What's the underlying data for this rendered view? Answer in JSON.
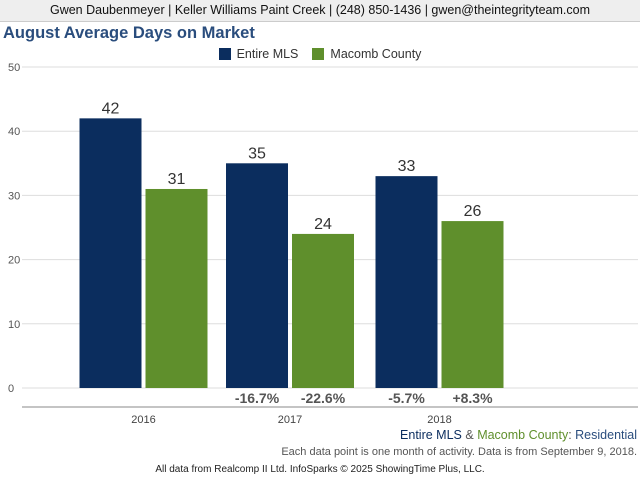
{
  "header": {
    "agent_line": "Gwen Daubenmeyer | Keller Williams Paint Creek | (248) 850-1436 | gwen@theintegrityteam.com"
  },
  "chart_data": {
    "type": "bar",
    "title": "August Average Days on Market",
    "categories": [
      "2016",
      "2017",
      "2018"
    ],
    "series": [
      {
        "name": "Entire MLS",
        "color": "#0b2d5e",
        "values": [
          42,
          35,
          33
        ]
      },
      {
        "name": "Macomb County",
        "color": "#5f8f2c",
        "values": [
          31,
          24,
          26
        ]
      }
    ],
    "change_labels": [
      [
        "",
        ""
      ],
      [
        "-16.7%",
        "-22.6%"
      ],
      [
        "-5.7%",
        "+8.3%"
      ]
    ],
    "ylim": [
      0,
      50
    ],
    "yticks": [
      0,
      10,
      20,
      30,
      40,
      50
    ],
    "grid": true,
    "legend_position": "top-center"
  },
  "footer": {
    "legend_series_a": "Entire MLS",
    "legend_amp": " & ",
    "legend_series_b": "Macomb County",
    "legend_colon": ": ",
    "legend_segment": "Residential",
    "footnote": "Each data point is one month of activity. Data is from September 9, 2018.",
    "credit": "All data from Realcomp II Ltd. InfoSparks © 2025 ShowingTime Plus, LLC."
  }
}
